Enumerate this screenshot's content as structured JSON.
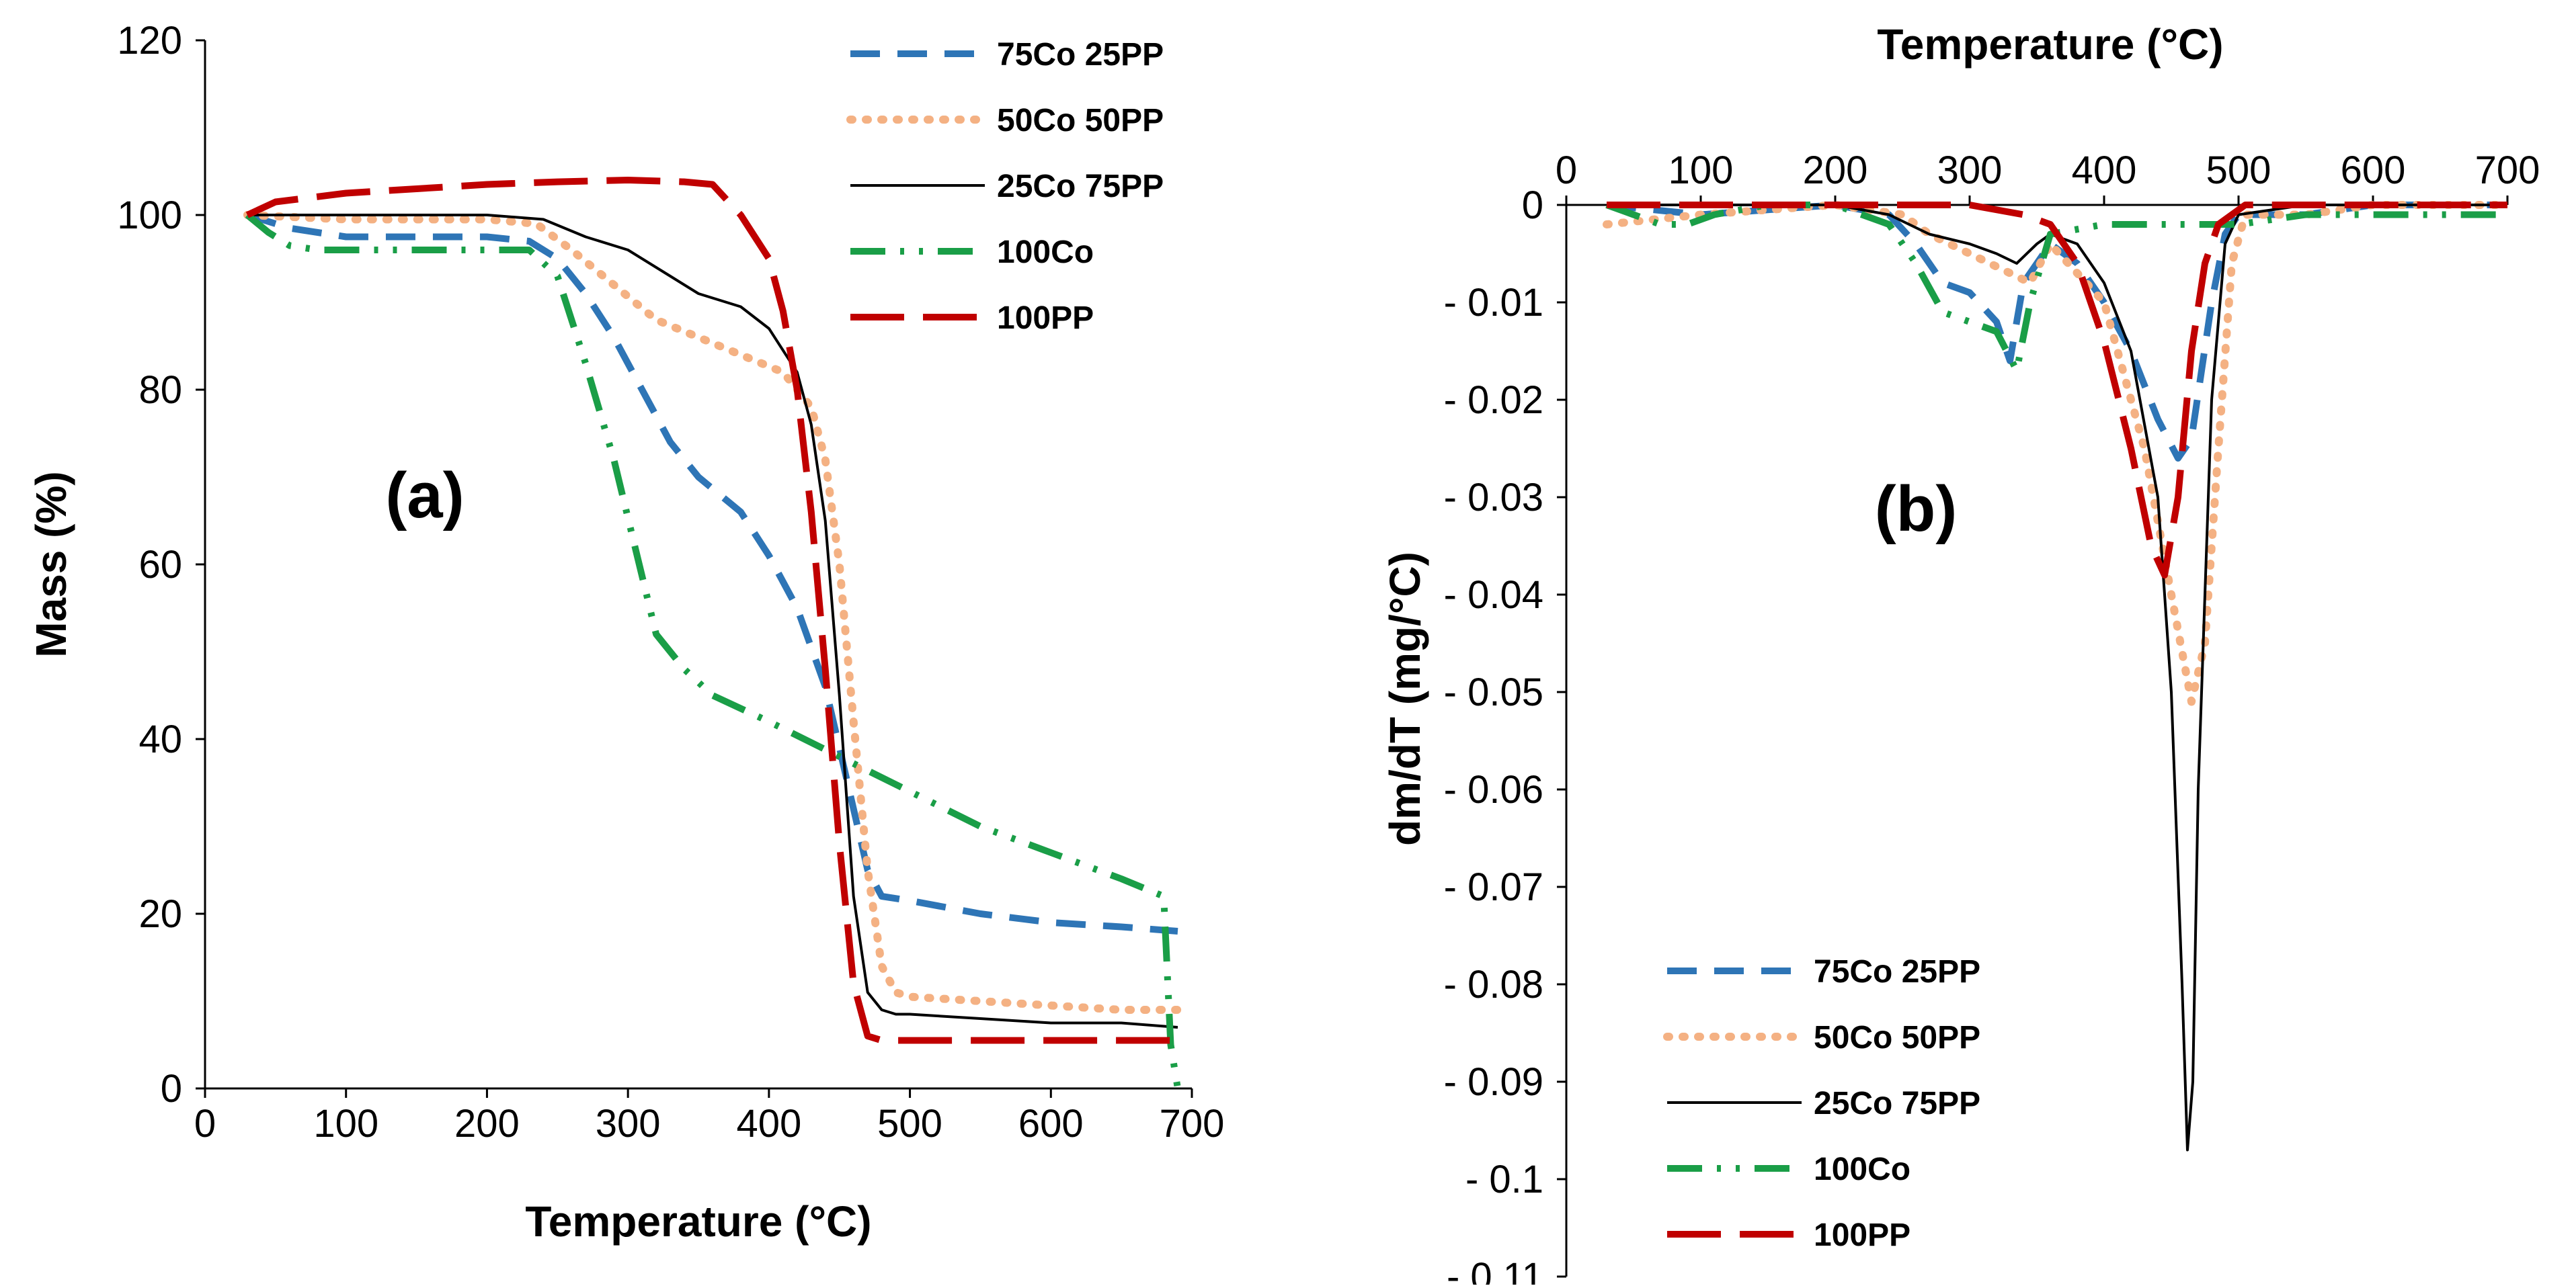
{
  "chart_data": [
    {
      "type": "line",
      "panel_label": "(a)",
      "xlabel": "Temperature (°C)",
      "ylabel": "Mass (%)",
      "xlim": [
        0,
        700
      ],
      "ylim": [
        0,
        120
      ],
      "xticks": [
        0,
        100,
        200,
        300,
        400,
        500,
        600,
        700
      ],
      "yticks": [
        0,
        20,
        40,
        60,
        80,
        100,
        120
      ],
      "legend_position": "top-right",
      "series": [
        {
          "name": "75Co 25PP",
          "color": "#2E75B6",
          "dash": "dashed",
          "x": [
            30,
            60,
            100,
            150,
            200,
            230,
            250,
            270,
            290,
            310,
            330,
            350,
            380,
            400,
            420,
            440,
            460,
            470,
            480,
            500,
            550,
            600,
            650,
            690
          ],
          "y": [
            100,
            98.5,
            97.5,
            97.5,
            97.5,
            97,
            95,
            91,
            86,
            80,
            74,
            70,
            66,
            61,
            55,
            46,
            32,
            25,
            22,
            21.5,
            20,
            19,
            18.5,
            18
          ]
        },
        {
          "name": "50Co 50PP",
          "color": "#F4B183",
          "dash": "dotted",
          "x": [
            30,
            100,
            200,
            235,
            260,
            290,
            320,
            350,
            380,
            410,
            430,
            440,
            450,
            460,
            470,
            480,
            490,
            500,
            550,
            600,
            650,
            690
          ],
          "y": [
            100,
            99.5,
            99.5,
            99,
            96,
            92,
            88,
            86,
            84,
            82,
            78,
            72,
            60,
            42,
            25,
            14,
            11,
            10.5,
            10,
            9.5,
            9,
            9
          ]
        },
        {
          "name": "25Co 75PP",
          "color": "#000000",
          "dash": "solid",
          "x": [
            30,
            100,
            200,
            240,
            270,
            300,
            330,
            350,
            380,
            400,
            420,
            430,
            440,
            450,
            460,
            470,
            480,
            490,
            500,
            550,
            600,
            650,
            690
          ],
          "y": [
            100,
            100,
            100,
            99.5,
            97.5,
            96,
            93,
            91,
            89.5,
            87,
            82,
            76,
            65,
            45,
            22,
            11,
            9,
            8.5,
            8.5,
            8,
            7.5,
            7.5,
            7
          ]
        },
        {
          "name": "100Co",
          "color": "#1A9E47",
          "dash": "dashdotdot",
          "x": [
            30,
            45,
            60,
            80,
            100,
            150,
            200,
            230,
            250,
            270,
            290,
            305,
            320,
            340,
            360,
            400,
            450,
            500,
            550,
            600,
            650,
            680,
            685,
            690
          ],
          "y": [
            100,
            98,
            96.5,
            96,
            96,
            96,
            96,
            96,
            93,
            83,
            72,
            62,
            52,
            48,
            45,
            42,
            38,
            34,
            30,
            27,
            24,
            22,
            5,
            0
          ]
        },
        {
          "name": "100PP",
          "color": "#C00000",
          "dash": "longdash",
          "x": [
            30,
            50,
            100,
            150,
            200,
            250,
            300,
            340,
            360,
            380,
            400,
            410,
            420,
            430,
            440,
            450,
            460,
            470,
            480,
            500,
            550,
            600,
            650,
            690
          ],
          "y": [
            100,
            101.5,
            102.5,
            103,
            103.5,
            103.8,
            104,
            103.8,
            103.5,
            100,
            95,
            89,
            80,
            66,
            48,
            28,
            12,
            6,
            5.5,
            5.5,
            5.5,
            5.5,
            5.5,
            5.5
          ]
        }
      ]
    },
    {
      "type": "line",
      "panel_label": "(b)",
      "xlabel": "Temperature (°C)",
      "ylabel": "dm/dT (mg/°C)",
      "xlim": [
        0,
        700
      ],
      "ylim": [
        -0.11,
        0
      ],
      "xaxis_position": "top",
      "xticks": [
        0,
        100,
        200,
        300,
        400,
        500,
        600,
        700
      ],
      "yticks": [
        0,
        -0.01,
        -0.02,
        -0.03,
        -0.04,
        -0.05,
        -0.06,
        -0.07,
        -0.08,
        -0.09,
        -0.1,
        -0.11
      ],
      "ytick_labels": [
        "0",
        "- 0.01",
        "- 0.02",
        "- 0.03",
        "- 0.04",
        "- 0.05",
        "- 0.06",
        "- 0.07",
        "- 0.08",
        "- 0.09",
        "- 0.1",
        "- 0.11"
      ],
      "legend_position": "bottom-left",
      "series": [
        {
          "name": "75Co 25PP",
          "color": "#2E75B6",
          "dash": "dashed",
          "x": [
            30,
            100,
            200,
            240,
            260,
            280,
            300,
            320,
            330,
            340,
            360,
            380,
            400,
            420,
            440,
            455,
            465,
            480,
            490,
            500,
            550,
            600,
            650,
            700
          ],
          "y": [
            0,
            -0.001,
            0,
            -0.001,
            -0.004,
            -0.008,
            -0.009,
            -0.012,
            -0.016,
            -0.008,
            -0.004,
            -0.006,
            -0.01,
            -0.015,
            -0.022,
            -0.026,
            -0.024,
            -0.01,
            -0.003,
            -0.001,
            -0.001,
            0,
            0,
            0
          ]
        },
        {
          "name": "50Co 50PP",
          "color": "#F4B183",
          "dash": "dotted",
          "x": [
            30,
            100,
            200,
            250,
            270,
            300,
            330,
            345,
            360,
            400,
            430,
            450,
            465,
            475,
            485,
            495,
            505,
            550,
            600,
            650,
            700
          ],
          "y": [
            -0.002,
            -0.001,
            0,
            -0.001,
            -0.003,
            -0.005,
            -0.007,
            -0.008,
            -0.004,
            -0.01,
            -0.025,
            -0.04,
            -0.051,
            -0.045,
            -0.025,
            -0.006,
            -0.001,
            -0.001,
            0,
            0,
            0
          ]
        },
        {
          "name": "25Co 75PP",
          "color": "#000000",
          "dash": "solid",
          "x": [
            30,
            100,
            200,
            240,
            270,
            300,
            320,
            335,
            350,
            360,
            380,
            400,
            420,
            440,
            450,
            458,
            462,
            466,
            470,
            480,
            490,
            500,
            550,
            600,
            650,
            700
          ],
          "y": [
            0,
            0,
            0,
            -0.001,
            -0.003,
            -0.004,
            -0.005,
            -0.006,
            -0.004,
            -0.003,
            -0.004,
            -0.008,
            -0.015,
            -0.03,
            -0.05,
            -0.08,
            -0.097,
            -0.09,
            -0.06,
            -0.02,
            -0.004,
            -0.001,
            0,
            0,
            0,
            0
          ]
        },
        {
          "name": "100Co",
          "color": "#1A9E47",
          "dash": "dashdotdot",
          "x": [
            30,
            50,
            70,
            90,
            110,
            150,
            200,
            240,
            260,
            280,
            300,
            320,
            335,
            345,
            360,
            400,
            450,
            500,
            550,
            600,
            650,
            700
          ],
          "y": [
            0,
            -0.001,
            -0.002,
            -0.002,
            -0.001,
            0,
            0,
            -0.002,
            -0.006,
            -0.011,
            -0.012,
            -0.013,
            -0.017,
            -0.01,
            -0.003,
            -0.002,
            -0.002,
            -0.002,
            -0.001,
            -0.001,
            -0.001,
            -0.001
          ]
        },
        {
          "name": "100PP",
          "color": "#C00000",
          "dash": "longdash",
          "x": [
            30,
            100,
            200,
            300,
            340,
            360,
            380,
            400,
            420,
            435,
            445,
            455,
            465,
            475,
            485,
            495,
            505,
            550,
            600,
            650,
            700
          ],
          "y": [
            0,
            0,
            0,
            0,
            -0.001,
            -0.002,
            -0.006,
            -0.014,
            -0.025,
            -0.035,
            -0.038,
            -0.03,
            -0.015,
            -0.006,
            -0.002,
            -0.001,
            0,
            0,
            0,
            0,
            0
          ]
        }
      ]
    }
  ]
}
